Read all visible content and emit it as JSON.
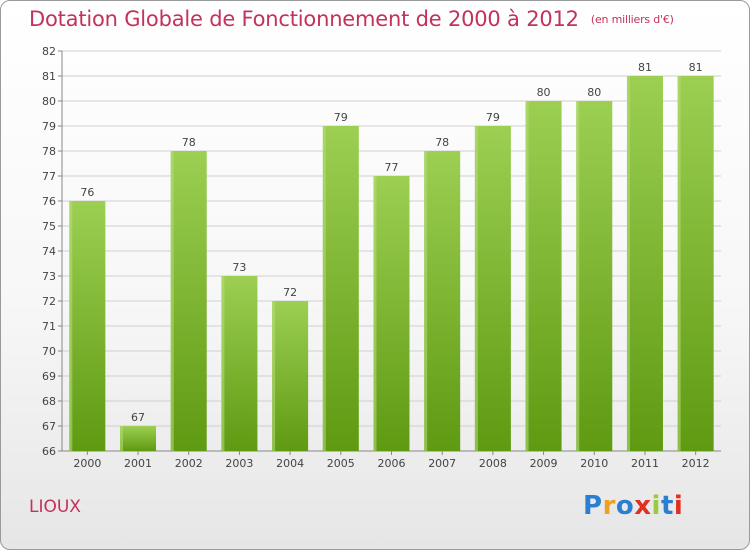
{
  "header": {
    "title": "Dotation Globale de Fonctionnement de 2000 à 2012",
    "subtitle": "(en milliers d'€)"
  },
  "footer": {
    "commune": "LIOUX",
    "logo": "Proxiti"
  },
  "colors": {
    "title": "#c3325a",
    "bar_top": "#9ccf52",
    "bar_bottom": "#5f9a12",
    "grid": "#d0d0d0"
  },
  "chart_data": {
    "type": "bar",
    "title": "Dotation Globale de Fonctionnement de 2000 à 2012",
    "subtitle": "(en milliers d'€)",
    "xlabel": "",
    "ylabel": "",
    "categories": [
      "2000",
      "2001",
      "2002",
      "2003",
      "2004",
      "2005",
      "2006",
      "2007",
      "2008",
      "2009",
      "2010",
      "2011",
      "2012"
    ],
    "values": [
      76,
      67,
      78,
      73,
      72,
      79,
      77,
      78,
      79,
      80,
      80,
      81,
      81
    ],
    "ylim": [
      66,
      82
    ],
    "yticks": [
      66,
      67,
      68,
      69,
      70,
      71,
      72,
      73,
      74,
      75,
      76,
      77,
      78,
      79,
      80,
      81,
      82
    ],
    "grid": true,
    "data_labels": true
  }
}
